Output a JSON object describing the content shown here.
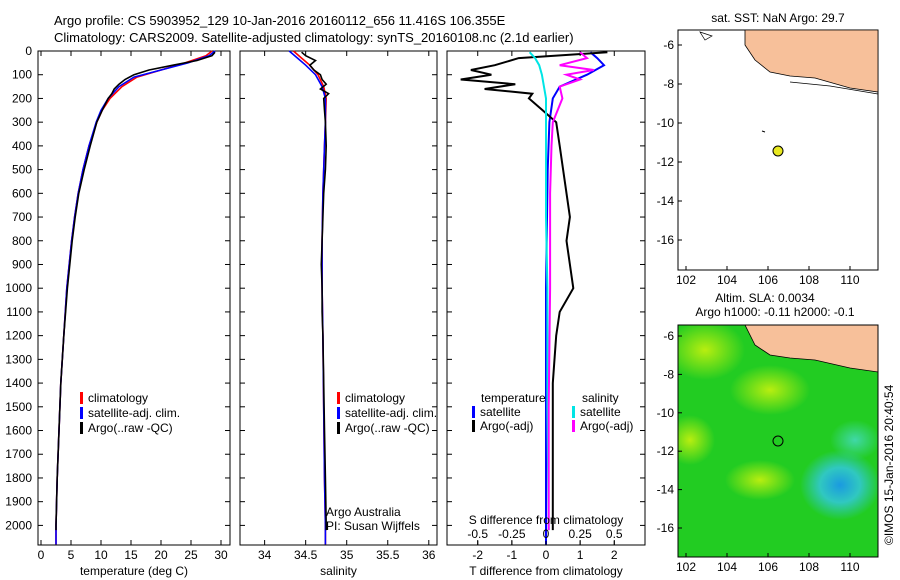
{
  "header": {
    "line1": "Argo profile: CS 5903952_129 10-Jan-2016 20160112_656 11.416S 106.355E",
    "line2": "Climatology: CARS2009. Satellite-adjusted climatology: synTS_20160108.nc (2.1d earlier)"
  },
  "colors": {
    "climatology": "#ff0000",
    "satellite": "#0000ff",
    "argo": "#000000",
    "sal_satellite": "#00e5e5",
    "sal_argo": "#ff00ff",
    "land": "#f7c09a",
    "marker": "#e8e820"
  },
  "chart_data": [
    {
      "type": "line",
      "name": "temperature",
      "xlabel": "temperature (deg C)",
      "xlim": [
        -0.5,
        31.5
      ],
      "ylim": [
        2080,
        0
      ],
      "xticks": [
        0,
        5,
        10,
        15,
        20,
        25,
        30
      ],
      "yticks": [
        0,
        100,
        200,
        300,
        400,
        500,
        600,
        700,
        800,
        900,
        1000,
        1100,
        1200,
        1300,
        1400,
        1500,
        1600,
        1700,
        1800,
        1900,
        2000
      ],
      "legend": [
        "climatology",
        "satellite-adj. clim.",
        "Argo(..raw -QC)"
      ],
      "series": [
        {
          "name": "climatology",
          "color": "#ff0000",
          "p": [
            0,
            20,
            50,
            80,
            110,
            150,
            200,
            250,
            300,
            400,
            500,
            600,
            700,
            800,
            1000,
            1200,
            1400,
            1600,
            1800,
            2000,
            2080
          ],
          "x": [
            28.5,
            27.5,
            24,
            20,
            16,
            13.5,
            11.5,
            10.2,
            9.3,
            8,
            7,
            6.2,
            5.6,
            5.1,
            4.3,
            3.8,
            3.3,
            3,
            2.7,
            2.5,
            2.5
          ]
        },
        {
          "name": "satellite-adj. clim.",
          "color": "#0000ff",
          "p": [
            0,
            20,
            50,
            80,
            110,
            150,
            200,
            250,
            300,
            400,
            500,
            600,
            700,
            800,
            1000,
            1200,
            1400,
            1600,
            1800,
            2000,
            2080
          ],
          "x": [
            29,
            28,
            24.5,
            20,
            15.5,
            13,
            11.2,
            10,
            9.2,
            8,
            7,
            6.2,
            5.6,
            5.1,
            4.3,
            3.8,
            3.3,
            3,
            2.7,
            2.5,
            2.5
          ]
        },
        {
          "name": "Argo",
          "color": "#000000",
          "p": [
            5,
            20,
            40,
            60,
            80,
            100,
            120,
            140,
            160,
            180,
            200,
            250,
            300,
            400,
            500,
            600,
            700,
            800,
            900,
            1000,
            1100,
            1200,
            1400,
            1600,
            1800,
            2000,
            2020
          ],
          "x": [
            29,
            28.5,
            26,
            22,
            18,
            15.5,
            14,
            13,
            12.2,
            11.8,
            11.2,
            10.2,
            9.3,
            8.2,
            7.2,
            6.3,
            5.7,
            5.2,
            4.8,
            4.4,
            4.1,
            3.8,
            3.3,
            3,
            2.7,
            2.5,
            2.5
          ]
        }
      ]
    },
    {
      "type": "line",
      "name": "salinity",
      "xlabel": "salinity",
      "xlim": [
        33.7,
        36.1
      ],
      "ylim": [
        2080,
        0
      ],
      "xticks": [
        "34",
        "34.5",
        "35",
        "35.5",
        "36"
      ],
      "legend": [
        "climatology",
        "satellite-adj. clim.",
        "Argo(..raw -QC)"
      ],
      "annotation": [
        "Argo Australia",
        "PI: Susan Wijffels"
      ],
      "series": [
        {
          "name": "climatology",
          "color": "#ff0000",
          "p": [
            0,
            30,
            60,
            100,
            150,
            200,
            300,
            400,
            500,
            600,
            800,
            1000,
            1200,
            1500,
            1800,
            2000,
            2080
          ],
          "x": [
            34.35,
            34.45,
            34.55,
            34.65,
            34.72,
            34.75,
            34.74,
            34.73,
            34.72,
            34.71,
            34.7,
            34.7,
            34.71,
            34.72,
            34.73,
            34.74,
            34.74
          ]
        },
        {
          "name": "satellite-adj. clim.",
          "color": "#0000ff",
          "p": [
            0,
            30,
            60,
            100,
            150,
            200,
            300,
            400,
            500,
            600,
            800,
            1000,
            1200,
            1500,
            1800,
            2000,
            2080
          ],
          "x": [
            34.3,
            34.4,
            34.5,
            34.62,
            34.7,
            34.74,
            34.74,
            34.73,
            34.72,
            34.71,
            34.7,
            34.7,
            34.71,
            34.72,
            34.73,
            34.74,
            34.74
          ]
        },
        {
          "name": "Argo",
          "color": "#000000",
          "p": [
            5,
            20,
            40,
            60,
            80,
            100,
            120,
            140,
            160,
            180,
            200,
            250,
            300,
            400,
            500,
            600,
            700,
            800,
            900,
            1000,
            1100,
            1200,
            1400,
            1600,
            1800,
            2000,
            2020
          ],
          "x": [
            34.45,
            34.5,
            34.62,
            34.55,
            34.6,
            34.68,
            34.7,
            34.75,
            34.68,
            34.78,
            34.72,
            34.73,
            34.74,
            34.75,
            34.74,
            34.72,
            34.71,
            34.7,
            34.69,
            34.7,
            34.7,
            34.71,
            34.72,
            34.73,
            34.74,
            34.75,
            34.75
          ]
        }
      ]
    },
    {
      "type": "line",
      "name": "difference",
      "xlabel": "T difference from climatology",
      "x2label": "S difference from climatology",
      "xlim": [
        -2.9,
        2.9
      ],
      "ylim": [
        2080,
        0
      ],
      "xticks": [
        "-2",
        "-1",
        "0",
        "1",
        "2"
      ],
      "x2ticks": [
        "-0.5",
        "-0.25",
        "0",
        "0.25",
        "0.5"
      ],
      "legend_temp": {
        "title": "temperature",
        "items": [
          "satellite",
          "Argo(-adj)"
        ]
      },
      "legend_sal": {
        "title": "salinity",
        "items": [
          "satellite",
          "Argo(-adj)"
        ]
      },
      "series": [
        {
          "name": "T satellite",
          "color": "#0000ff",
          "p": [
            5,
            30,
            60,
            100,
            150,
            200,
            300,
            500,
            1000,
            1500,
            2080
          ],
          "x": [
            1.3,
            1.5,
            1.7,
            1.2,
            0.4,
            0.2,
            0.1,
            0.05,
            0,
            0,
            0
          ]
        },
        {
          "name": "T Argo(-adj)",
          "color": "#000000",
          "p": [
            5,
            30,
            60,
            80,
            100,
            120,
            140,
            160,
            180,
            200,
            250,
            300,
            400,
            500,
            600,
            700,
            800,
            900,
            1000,
            1100,
            1200,
            1400,
            1600,
            1800,
            2000,
            2020
          ],
          "x": [
            1.8,
            -0.8,
            -1.5,
            -2.2,
            -1.6,
            -2.5,
            -0.9,
            -1.8,
            -0.4,
            -0.5,
            -0.1,
            0.3,
            0.4,
            0.5,
            0.6,
            0.7,
            0.6,
            0.7,
            0.8,
            0.4,
            0.3,
            0.2,
            0.2,
            0.2,
            0.2,
            0.2
          ]
        },
        {
          "name": "S satellite",
          "color": "#00e5e5",
          "p": [
            5,
            30,
            60,
            100,
            200,
            400,
            700,
            1000,
            1500,
            2020
          ],
          "x": [
            -0.12,
            -0.08,
            -0.05,
            -0.03,
            0,
            0,
            0,
            0.01,
            0.01,
            0.02
          ]
        },
        {
          "name": "S Argo(-adj)",
          "color": "#ff00ff",
          "p": [
            5,
            30,
            60,
            80,
            100,
            120,
            150,
            200,
            300,
            400,
            600,
            1000,
            1500,
            2020
          ],
          "x": [
            0.25,
            0.3,
            0.1,
            0.35,
            0.15,
            0.25,
            0.1,
            0.12,
            0.05,
            0.04,
            0.03,
            0.03,
            0.02,
            0.02
          ]
        }
      ]
    }
  ],
  "map_sst": {
    "title": "sat. SST: NaN Argo: 29.7",
    "xticks": [
      "102",
      "104",
      "106",
      "108",
      "110"
    ],
    "yticks": [
      "-6",
      "-8",
      "-10",
      "-12",
      "-14",
      "-16"
    ]
  },
  "map_sla": {
    "title1": "Altim. SLA: 0.0034",
    "title2": "Argo h1000: -0.11 h2000: -0.1",
    "xticks": [
      "102",
      "104",
      "106",
      "108",
      "110"
    ],
    "yticks": [
      "-6",
      "-8",
      "-10",
      "-12",
      "-14",
      "-16"
    ]
  },
  "footer": {
    "credit": "©IMOS 15-Jan-2016 20:40:54"
  }
}
